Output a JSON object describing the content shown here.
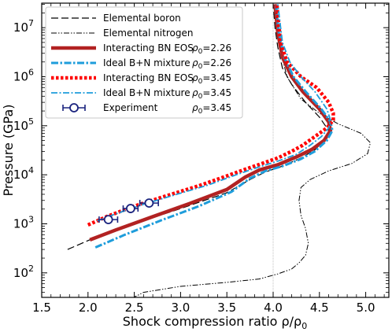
{
  "chart_data": {
    "type": "line",
    "xlabel": "Shock compression ratio ρ/ρ",
    "xlabel_sub": "0",
    "ylabel": "Pressure (GPa)",
    "xlim": [
      1.5,
      5.25
    ],
    "ylim_log10": [
      1.5,
      7.5
    ],
    "yscale": "log",
    "x_ticks": [
      1.5,
      2.0,
      2.5,
      3.0,
      3.5,
      4.0,
      4.5,
      5.0
    ],
    "x_tick_labels": [
      "1.5",
      "2.0",
      "2.5",
      "3.0",
      "3.5",
      "4.0",
      "4.5",
      "5.0"
    ],
    "y_tick_exponents": [
      2,
      3,
      4,
      5,
      6,
      7
    ],
    "y_tick_base": "10",
    "reference_line_x": 4.0,
    "legend": {
      "placement": "top-left",
      "entries": [
        {
          "label": "Elemental boron",
          "rho": ""
        },
        {
          "label": "Elemental nitrogen",
          "rho": ""
        },
        {
          "label": "Interacting BN EOS",
          "rho": "2.26"
        },
        {
          "label": "Ideal B+N mixture",
          "rho": "2.26"
        },
        {
          "label": "Interacting BN EOS",
          "rho": "3.45"
        },
        {
          "label": "Ideal B+N mixture",
          "rho": "3.45"
        },
        {
          "label": "Experiment",
          "rho": "3.45"
        }
      ],
      "rho_prefix": "ρ",
      "rho_sub": "0",
      "rho_eq": "="
    },
    "series": [
      {
        "name": "Elemental boron",
        "style": "dashed-thin",
        "color": "#000000",
        "points": [
          [
            1.78,
            300
          ],
          [
            2.1,
            550
          ],
          [
            2.5,
            1000
          ],
          [
            3.0,
            2050
          ],
          [
            3.5,
            4300
          ],
          [
            3.75,
            8000
          ],
          [
            3.92,
            11500
          ],
          [
            4.1,
            15000
          ],
          [
            4.3,
            22000
          ],
          [
            4.45,
            32000
          ],
          [
            4.57,
            55000
          ],
          [
            4.6,
            80000
          ],
          [
            4.5,
            150000
          ],
          [
            4.35,
            300000
          ],
          [
            4.2,
            700000
          ],
          [
            4.1,
            1500000
          ],
          [
            4.05,
            4000000
          ],
          [
            4.02,
            10000000
          ],
          [
            4.0,
            30000000
          ]
        ]
      },
      {
        "name": "Elemental nitrogen",
        "style": "dash-dot-dot",
        "color": "#000000",
        "points": [
          [
            2.47,
            30
          ],
          [
            2.6,
            40
          ],
          [
            3.0,
            53
          ],
          [
            3.5,
            64
          ],
          [
            3.85,
            75
          ],
          [
            4.05,
            95
          ],
          [
            4.2,
            120
          ],
          [
            4.28,
            160
          ],
          [
            4.35,
            230
          ],
          [
            4.38,
            400
          ],
          [
            4.35,
            800
          ],
          [
            4.3,
            1500
          ],
          [
            4.28,
            3000
          ],
          [
            4.3,
            5500
          ],
          [
            4.4,
            8000
          ],
          [
            4.6,
            12000
          ],
          [
            4.85,
            17000
          ],
          [
            5.02,
            27000
          ],
          [
            5.05,
            45000
          ],
          [
            4.95,
            70000
          ],
          [
            4.7,
            110000
          ],
          [
            4.5,
            180000
          ],
          [
            4.3,
            350000
          ],
          [
            4.15,
            1000000
          ],
          [
            4.07,
            4000000
          ],
          [
            4.03,
            30000000
          ]
        ]
      },
      {
        "name": "Interacting BN EOS ρ0=2.26",
        "style": "solid-thick",
        "color": "#b22222",
        "points": [
          [
            2.02,
            470
          ],
          [
            2.3,
            750
          ],
          [
            2.7,
            1400
          ],
          [
            3.1,
            2600
          ],
          [
            3.5,
            5000
          ],
          [
            3.7,
            9000
          ],
          [
            3.85,
            12500
          ],
          [
            4.05,
            16000
          ],
          [
            4.25,
            23000
          ],
          [
            4.42,
            33000
          ],
          [
            4.55,
            50000
          ],
          [
            4.62,
            80000
          ],
          [
            4.6,
            120000
          ],
          [
            4.5,
            220000
          ],
          [
            4.32,
            500000
          ],
          [
            4.2,
            1000000
          ],
          [
            4.1,
            2500000
          ],
          [
            4.05,
            8000000
          ],
          [
            4.02,
            30000000
          ]
        ]
      },
      {
        "name": "Ideal B+N mixture ρ0=2.26",
        "style": "dash-dot-thick",
        "color": "#1e9ddb",
        "points": [
          [
            2.08,
            330
          ],
          [
            2.4,
            600
          ],
          [
            2.8,
            1200
          ],
          [
            3.2,
            2300
          ],
          [
            3.55,
            4500
          ],
          [
            3.75,
            8500
          ],
          [
            3.92,
            12000
          ],
          [
            4.1,
            15000
          ],
          [
            4.3,
            21000
          ],
          [
            4.45,
            30000
          ],
          [
            4.58,
            50000
          ],
          [
            4.64,
            80000
          ],
          [
            4.62,
            120000
          ],
          [
            4.52,
            220000
          ],
          [
            4.35,
            500000
          ],
          [
            4.22,
            1000000
          ],
          [
            4.12,
            2500000
          ],
          [
            4.06,
            8000000
          ],
          [
            4.03,
            30000000
          ]
        ]
      },
      {
        "name": "Interacting BN EOS ρ0=3.45",
        "style": "dotted-thick",
        "color": "#ff0000",
        "points": [
          [
            2.0,
            950
          ],
          [
            2.2,
            1400
          ],
          [
            2.5,
            2300
          ],
          [
            2.8,
            3500
          ],
          [
            3.2,
            6000
          ],
          [
            3.5,
            9500
          ],
          [
            3.7,
            13000
          ],
          [
            3.9,
            17500
          ],
          [
            4.05,
            22000
          ],
          [
            4.2,
            30000
          ],
          [
            4.32,
            40000
          ],
          [
            4.45,
            60000
          ],
          [
            4.58,
            90000
          ],
          [
            4.65,
            130000
          ],
          [
            4.65,
            180000
          ],
          [
            4.6,
            300000
          ],
          [
            4.47,
            600000
          ],
          [
            4.3,
            1000000
          ],
          [
            4.15,
            2000000
          ],
          [
            4.08,
            5000000
          ],
          [
            4.04,
            30000000
          ]
        ]
      },
      {
        "name": "Ideal B+N mixture ρ0=3.45",
        "style": "dash-dot-thin",
        "color": "#1e9ddb",
        "points": [
          [
            2.1,
            1150
          ],
          [
            2.3,
            1600
          ],
          [
            2.6,
            2500
          ],
          [
            2.9,
            3700
          ],
          [
            3.3,
            6200
          ],
          [
            3.6,
            10000
          ],
          [
            3.85,
            14500
          ],
          [
            4.05,
            19000
          ],
          [
            4.25,
            26000
          ],
          [
            4.4,
            40000
          ],
          [
            4.52,
            60000
          ],
          [
            4.6,
            90000
          ],
          [
            4.62,
            130000
          ],
          [
            4.58,
            220000
          ],
          [
            4.45,
            500000
          ],
          [
            4.3,
            1000000
          ],
          [
            4.18,
            2000000
          ],
          [
            4.1,
            5000000
          ],
          [
            4.05,
            30000000
          ]
        ]
      }
    ],
    "experiment": {
      "name": "Experiment ρ0=3.45",
      "points": [
        {
          "x": 2.22,
          "y": 1220,
          "xerr": 0.1
        },
        {
          "x": 2.46,
          "y": 2050,
          "xerr": 0.08
        },
        {
          "x": 2.66,
          "y": 2650,
          "xerr": 0.1
        }
      ]
    },
    "grid": false
  }
}
